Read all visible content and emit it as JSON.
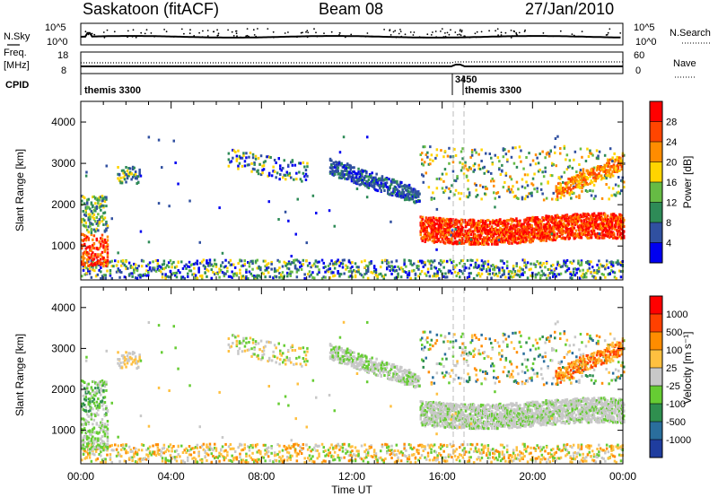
{
  "header": {
    "site": "Saskatoon (fitACF)",
    "beam": "Beam 08",
    "date": "27/Jan/2010"
  },
  "status_panel": {
    "nsky_label": "N.Sky",
    "nsearch_label": "N.Search",
    "freq_label": "Freq.",
    "freq_unit": "[MHz]",
    "nave_label": "Nave",
    "cpid_label": "CPID",
    "noise_ticks": [
      "10^5",
      "10^0"
    ],
    "freq_ticks": [
      "18",
      "8"
    ],
    "nave_ticks": [
      "60",
      "0"
    ],
    "cpid_annotations": [
      {
        "label": "themis 3300",
        "hour": 0.1
      },
      {
        "label": "3450",
        "hour": 16.5
      },
      {
        "label": "themis 3300",
        "hour": 16.8
      }
    ]
  },
  "chart_data": [
    {
      "type": "heatmap",
      "parameter": "power",
      "ylabel": "Slant Range [km]",
      "xlim": [
        0,
        24
      ],
      "ylim": [
        180,
        4500
      ],
      "yticks": [
        "1000",
        "2000",
        "3000",
        "4000"
      ],
      "colorbar_label": "Power [dB]",
      "colorbar_ticks": [
        "28",
        "24",
        "20",
        "16",
        "12",
        "8",
        "4"
      ],
      "colorbar_colors": [
        "#0000f0",
        "#3050a0",
        "#2e8b57",
        "#66bb44",
        "#ffd400",
        "#ff8c00",
        "#ff4500",
        "#ff0000"
      ]
    },
    {
      "type": "heatmap",
      "parameter": "velocity",
      "ylabel": "Slant Range [km]",
      "xlabel": "Time UT",
      "xlim": [
        0,
        24
      ],
      "ylim": [
        180,
        4500
      ],
      "yticks": [
        "1000",
        "2000",
        "3000",
        "4000"
      ],
      "xticks": [
        "00:00",
        "04:00",
        "08:00",
        "12:00",
        "16:00",
        "20:00",
        "00:00"
      ],
      "colorbar_label": "Velocity [m s⁻¹]",
      "colorbar_ticks": [
        "1000",
        "500",
        "100",
        "25",
        "-25",
        "-100",
        "-500",
        "-1000"
      ],
      "colorbar_colors": [
        "#1f3d9f",
        "#2a6e9c",
        "#2f8f4f",
        "#66cc33",
        "#c8c8c8",
        "#ffc040",
        "#ff8c00",
        "#ff4000",
        "#ff0000"
      ]
    }
  ]
}
